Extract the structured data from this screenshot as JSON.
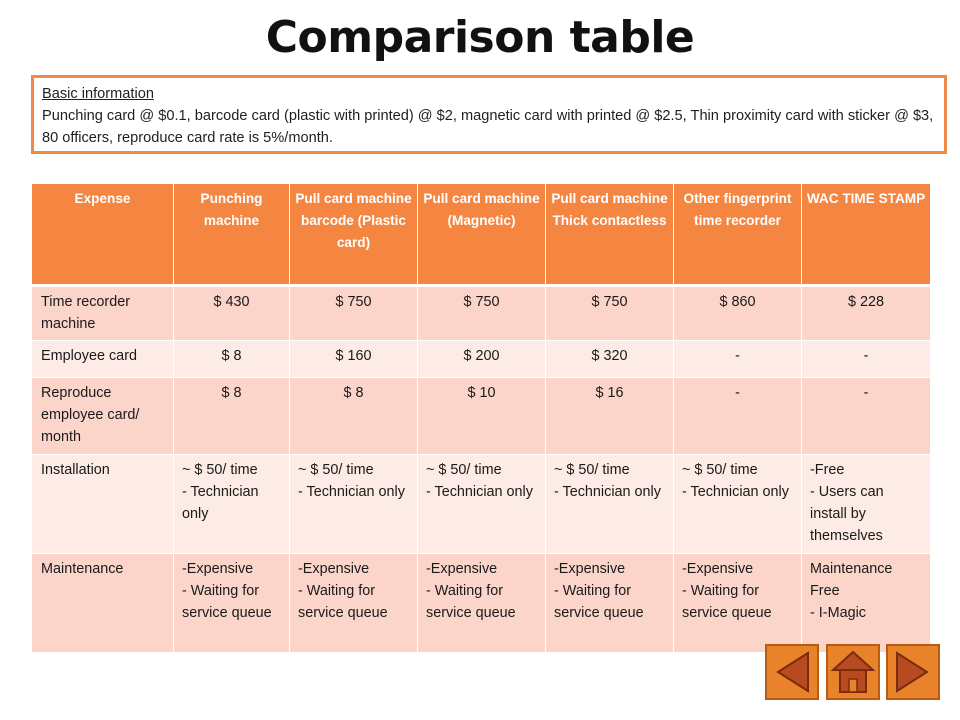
{
  "title": "Comparison table",
  "info": {
    "heading": "Basic information",
    "body": "Punching card @ $0.1, barcode card (plastic with printed) @ $2, magnetic card with printed @ $2.5, Thin proximity card with sticker @ $3, 80 officers, reproduce card rate is 5%/month."
  },
  "table": {
    "headers": [
      "Expense",
      "Punching machine",
      "Pull card machine barcode (Plastic card)",
      "Pull card machine (Magnetic)",
      "Pull card machine Thick contactless",
      "Other fingerprint time recorder",
      "WAC TIME STAMP"
    ],
    "rows": [
      {
        "label": "Time recorder machine",
        "cells": [
          "$ 430",
          "$ 750",
          "$ 750",
          "$ 750",
          "$ 860",
          "$ 228"
        ]
      },
      {
        "label": "Employee card",
        "cells": [
          "$ 8",
          "$ 160",
          "$ 200",
          "$ 320",
          "-",
          "-"
        ]
      },
      {
        "label": "Reproduce employee card/ month",
        "cells": [
          "$ 8",
          "$ 8",
          "$ 10",
          "$ 16",
          "-",
          "-"
        ]
      },
      {
        "label": "Installation",
        "cells": [
          "~ $ 50/ time\n- Technician only",
          "~ $ 50/ time\n- Technician only",
          "~ $ 50/ time\n- Technician only",
          "~ $ 50/ time\n- Technician only",
          "~ $ 50/ time\n- Technician only",
          "-Free\n- Users can install by themselves"
        ]
      },
      {
        "label": "Maintenance",
        "cells": [
          "-Expensive\n- Waiting for service queue",
          "-Expensive\n- Waiting for service queue",
          "-Expensive\n- Waiting for service queue",
          "-Expensive\n- Waiting for service queue",
          "-Expensive\n- Waiting for service queue",
          "Maintenance Free\n- I-Magic"
        ]
      }
    ]
  },
  "nav": {
    "buttons": [
      {
        "icon": "arrow-left-icon"
      },
      {
        "icon": "home-icon"
      },
      {
        "icon": "arrow-right-icon"
      }
    ],
    "color": "#e8822b"
  },
  "colors": {
    "header_bg": "#f58642",
    "row_dark": "#fbd5ca",
    "row_light": "#fdebe5",
    "box_border": "#f08a4b"
  }
}
